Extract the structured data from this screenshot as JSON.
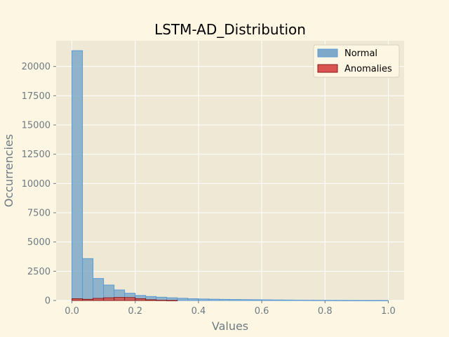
{
  "chart_data": {
    "type": "bar",
    "title": "LSTM-AD_Distribution",
    "xlabel": "Values",
    "ylabel": "Occurrencies",
    "xlim": [
      -0.05,
      1.05
    ],
    "ylim": [
      0,
      22200
    ],
    "xticks": [
      0.0,
      0.2,
      0.4,
      0.6,
      0.8,
      1.0
    ],
    "xtick_labels": [
      "0.0",
      "0.2",
      "0.4",
      "0.6",
      "0.8",
      "1.0"
    ],
    "yticks": [
      0,
      2500,
      5000,
      7500,
      10000,
      12500,
      15000,
      17500,
      20000
    ],
    "ytick_labels": [
      "0",
      "2500",
      "5000",
      "7500",
      "10000",
      "12500",
      "15000",
      "17500",
      "20000"
    ],
    "grid": true,
    "legend_position": "top-right",
    "series": [
      {
        "name": "Normal",
        "bin_start": 0.0,
        "bin_width": 0.0333,
        "values": [
          21350,
          3580,
          1880,
          1320,
          900,
          620,
          430,
          340,
          280,
          230,
          190,
          150,
          130,
          110,
          95,
          85,
          75,
          65,
          55,
          45,
          38,
          30,
          24,
          18,
          12,
          8,
          5,
          3,
          2,
          1
        ],
        "fill": "#7ea9c9",
        "edge": "#5b9bd5"
      },
      {
        "name": "Anomalies",
        "bin_start": 0.0,
        "bin_width": 0.0333,
        "values": [
          150,
          100,
          180,
          230,
          260,
          250,
          150,
          60,
          20,
          5,
          0,
          0,
          0,
          0,
          0,
          0,
          0,
          0,
          0,
          0,
          0,
          0,
          0,
          0,
          0,
          0,
          0,
          0,
          0,
          0
        ],
        "fill": "#d9534f",
        "edge": "#8b1a1a"
      }
    ]
  }
}
